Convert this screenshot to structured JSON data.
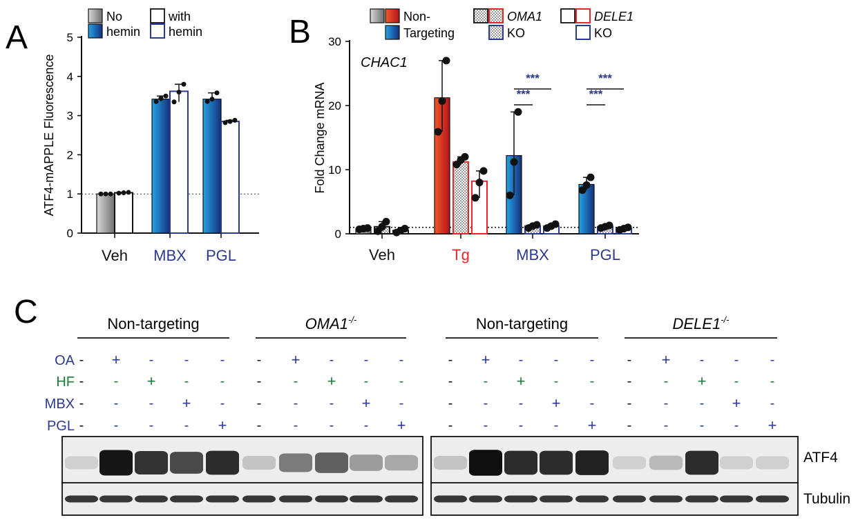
{
  "colors": {
    "gray": "#9a9a9a",
    "blue": "#1a7fc8",
    "navy": "#2b3990",
    "red": "#e8252b",
    "green": "#1f7a3a",
    "black": "#111111"
  },
  "chart_data": [
    {
      "type": "bar",
      "panel_label": "A",
      "ylabel": "ATF4-mAPPLE Fluorescence",
      "ylim": [
        0,
        5
      ],
      "yticks": [
        "0",
        "1",
        "2",
        "3",
        "4",
        "5"
      ],
      "categories": [
        "Veh",
        "MBX",
        "PGL"
      ],
      "legend": {
        "no_top": "No",
        "no_bottom": "hemin",
        "with_top": "with",
        "with_bottom": "hemin"
      },
      "series": [
        {
          "name": "No hemin",
          "values": [
            1.0,
            3.42,
            3.42
          ],
          "points": [
            [
              1.0,
              1.0,
              1.0
            ],
            [
              3.36,
              3.44,
              3.5
            ],
            [
              3.36,
              3.42,
              3.58
            ]
          ]
        },
        {
          "name": "with hemin",
          "values": [
            1.03,
            3.62,
            2.85
          ],
          "points": [
            [
              1.02,
              1.03,
              1.04
            ],
            [
              3.35,
              3.6,
              3.8
            ],
            [
              2.82,
              2.85,
              2.88
            ]
          ]
        }
      ],
      "reference_line": 1
    },
    {
      "type": "bar",
      "panel_label": "B",
      "title": "CHAC1",
      "ylabel": "Fold Change mRNA",
      "ylim": [
        0,
        30
      ],
      "yticks": [
        "0",
        "10",
        "20",
        "30"
      ],
      "categories": [
        "Veh",
        "Tg",
        "MBX",
        "PGL"
      ],
      "legend": {
        "nt_top": "Non-",
        "nt_bottom": "Targeting",
        "oma1": "OMA1",
        "oma1_ko": "KO",
        "dele1": "DELE1",
        "dele1_ko": "KO"
      },
      "series": [
        {
          "name": "Non-Targeting",
          "values": [
            0.8,
            21.2,
            12.2,
            7.7
          ],
          "points": [
            [
              0.7,
              0.8,
              0.9
            ],
            [
              15.9,
              20.7,
              27.0
            ],
            [
              6.0,
              11.2,
              19.0
            ],
            [
              6.8,
              7.6,
              8.8
            ]
          ]
        },
        {
          "name": "OMA1 KO",
          "values": [
            1.1,
            11.2,
            1.2,
            1.1
          ],
          "points": [
            [
              0.4,
              1.1,
              1.9
            ],
            [
              10.8,
              11.5,
              12.0
            ],
            [
              0.9,
              1.2,
              1.4
            ],
            [
              0.9,
              1.1,
              1.3
            ]
          ]
        },
        {
          "name": "DELE1 KO",
          "values": [
            0.5,
            8.2,
            1.2,
            0.8
          ],
          "points": [
            [
              0.2,
              0.5,
              0.8
            ],
            [
              5.6,
              8.0,
              9.8
            ],
            [
              0.9,
              1.2,
              1.5
            ],
            [
              0.6,
              0.8,
              1.0
            ]
          ]
        }
      ],
      "significance": "***",
      "reference_line": 1
    }
  ],
  "western": {
    "panel_label": "C",
    "groups": [
      {
        "label": "Non-targeting",
        "italic": false,
        "sup": ""
      },
      {
        "label": "OMA1",
        "italic": true,
        "sup": "-/-"
      },
      {
        "label": "Non-targeting",
        "italic": false,
        "sup": ""
      },
      {
        "label": "DELE1",
        "italic": true,
        "sup": "-/-"
      }
    ],
    "treatments": [
      {
        "label": "OA",
        "color": "navy"
      },
      {
        "label": "HF",
        "color": "green"
      },
      {
        "label": "MBX",
        "color": "navy"
      },
      {
        "label": "PGL",
        "color": "navy"
      }
    ],
    "plus": "+",
    "minus": "-",
    "blots": [
      {
        "label": "ATF4",
        "intensities": [
          0.12,
          0.95,
          0.82,
          0.72,
          0.85,
          0.18,
          0.5,
          0.62,
          0.35,
          0.3,
          0.18,
          0.98,
          0.85,
          0.85,
          0.9,
          0.12,
          0.22,
          0.85,
          0.12,
          0.12
        ]
      },
      {
        "label": "Tubulin",
        "intensities": [
          0.8,
          0.8,
          0.8,
          0.8,
          0.8,
          0.8,
          0.8,
          0.8,
          0.8,
          0.8,
          0.8,
          0.8,
          0.8,
          0.8,
          0.8,
          0.8,
          0.8,
          0.8,
          0.8,
          0.8
        ]
      }
    ]
  }
}
